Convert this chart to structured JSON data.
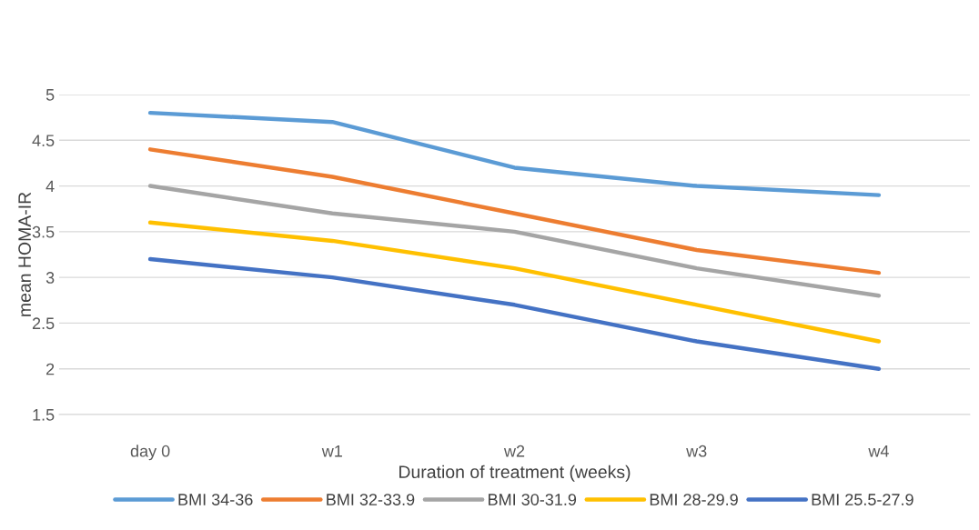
{
  "chart_data": {
    "type": "line",
    "xlabel": "Duration of treatment (weeks)",
    "ylabel": "mean HOMA-IR",
    "categories": [
      "day 0",
      "w1",
      "w2",
      "w3",
      "w4"
    ],
    "series": [
      {
        "name": "BMI 34-36",
        "color": "#5b9bd5",
        "values": [
          4.8,
          4.7,
          4.2,
          4.0,
          3.9
        ]
      },
      {
        "name": "BMI 32-33.9",
        "color": "#ed7d31",
        "values": [
          4.4,
          4.1,
          3.7,
          3.3,
          3.05
        ]
      },
      {
        "name": "BMI 30-31.9",
        "color": "#a5a5a5",
        "values": [
          4.0,
          3.7,
          3.5,
          3.1,
          2.8
        ]
      },
      {
        "name": "BMI 28-29.9",
        "color": "#ffc000",
        "values": [
          3.6,
          3.4,
          3.1,
          2.7,
          2.3
        ]
      },
      {
        "name": "BMI 25.5-27.9",
        "color": "#4472c4",
        "values": [
          3.2,
          3.0,
          2.7,
          2.3,
          2.0
        ]
      }
    ],
    "ylim": [
      1.5,
      5
    ],
    "yticks": [
      1.5,
      2,
      2.5,
      3,
      3.5,
      4,
      4.5,
      5
    ],
    "grid": "y",
    "legend": "bottom",
    "marker": "none",
    "line_style": "solid"
  }
}
